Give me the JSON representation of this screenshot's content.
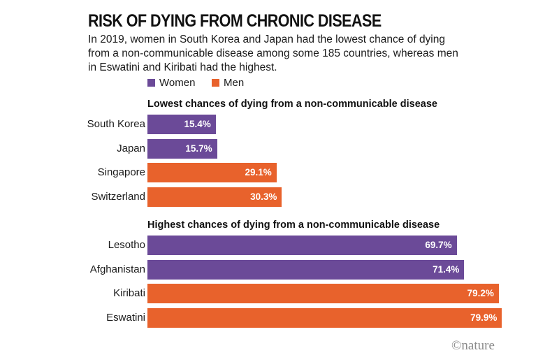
{
  "chart_data": {
    "type": "bar",
    "orientation": "horizontal",
    "title": "RISK OF DYING FROM CHRONIC DISEASE",
    "subtitle": "In 2019, women in South Korea and Japan had the lowest chance of dying from a non-communicable disease among some 185 countries, whereas men in Eswatini and Kiribati had the highest.",
    "legend": [
      {
        "name": "Women",
        "color": "#6b4a98"
      },
      {
        "name": "Men",
        "color": "#e8622c"
      }
    ],
    "xlim": [
      0,
      100
    ],
    "groups": [
      {
        "title": "Lowest chances of dying from a non-communicable disease",
        "bars": [
          {
            "label": "South Korea",
            "value": 15.4,
            "display": "15.4%",
            "series": "Women"
          },
          {
            "label": "Japan",
            "value": 15.7,
            "display": "15.7%",
            "series": "Women"
          },
          {
            "label": "Singapore",
            "value": 29.1,
            "display": "29.1%",
            "series": "Men"
          },
          {
            "label": "Switzerland",
            "value": 30.3,
            "display": "30.3%",
            "series": "Men"
          }
        ]
      },
      {
        "title": "Highest chances of dying from a non-communicable disease",
        "bars": [
          {
            "label": "Lesotho",
            "value": 69.7,
            "display": "69.7%",
            "series": "Women"
          },
          {
            "label": "Afghanistan",
            "value": 71.4,
            "display": "71.4%",
            "series": "Women"
          },
          {
            "label": "Kiribati",
            "value": 79.2,
            "display": "79.2%",
            "series": "Men"
          },
          {
            "label": "Eswatini",
            "value": 79.9,
            "display": "79.9%",
            "series": "Men"
          }
        ]
      }
    ]
  },
  "credit": "©nature"
}
